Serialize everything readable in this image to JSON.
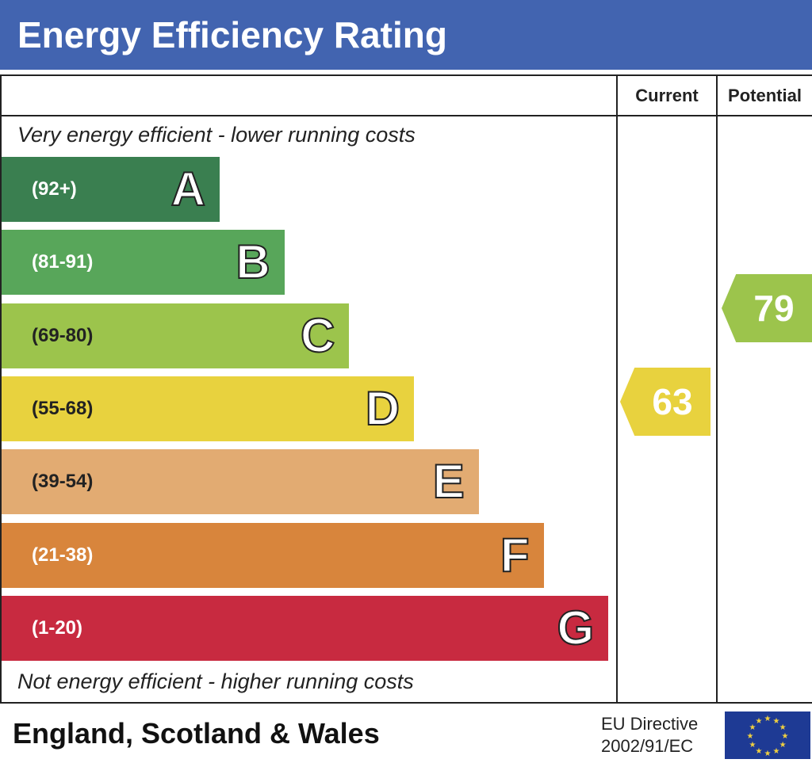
{
  "title": "Energy Efficiency Rating",
  "colors": {
    "header": "#4264b0",
    "flag": "#1e3a94",
    "stars": "#f0d040"
  },
  "chart_data": {
    "type": "bar",
    "columns": [
      "Current",
      "Potential"
    ],
    "top_caption": "Very energy efficient - lower running costs",
    "bottom_caption": "Not energy efficient - higher running costs",
    "bands": [
      {
        "letter": "A",
        "range": "(92+)",
        "color": "#3a7f50"
      },
      {
        "letter": "B",
        "range": "(81-91)",
        "color": "#58a65a"
      },
      {
        "letter": "C",
        "range": "(69-80)",
        "color": "#9cc44c"
      },
      {
        "letter": "D",
        "range": "(55-68)",
        "color": "#e8d23e"
      },
      {
        "letter": "E",
        "range": "(39-54)",
        "color": "#e2ab72"
      },
      {
        "letter": "F",
        "range": "(21-38)",
        "color": "#d8853c"
      },
      {
        "letter": "G",
        "range": "(1-20)",
        "color": "#c82a40"
      }
    ],
    "current": {
      "value": "63",
      "band": "D"
    },
    "potential": {
      "value": "79",
      "band": "C"
    }
  },
  "footer": {
    "region": "England, Scotland & Wales",
    "directive_line1": "EU Directive",
    "directive_line2": "2002/91/EC",
    "flag_icon": "eu-flag-icon"
  }
}
